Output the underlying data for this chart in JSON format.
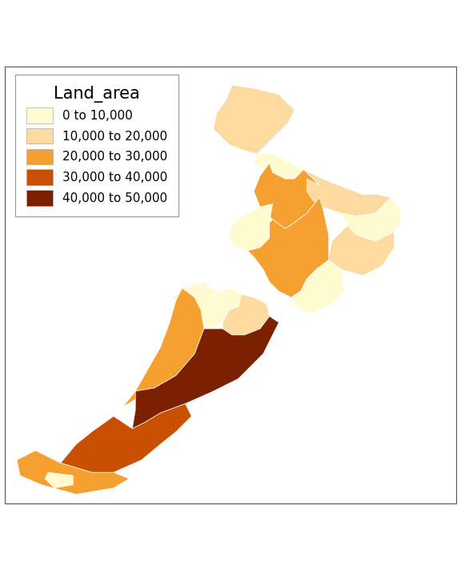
{
  "title": "Land_area",
  "legend_labels": [
    "0 to 10,000",
    "10,000 to 20,000",
    "20,000 to 30,000",
    "30,000 to 40,000",
    "40,000 to 50,000"
  ],
  "legend_colors": [
    "#FFFBD0",
    "#FDDBA0",
    "#F5A030",
    "#C85000",
    "#7B2000"
  ],
  "background_color": "#FFFFFF",
  "border_color": "#555555",
  "bins": [
    0,
    10000,
    20000,
    30000,
    40000,
    50000
  ],
  "region_edgecolor": "#FFFFFF",
  "region_linewidth": 0.5,
  "legend_title_fontsize": 15,
  "legend_label_fontsize": 11,
  "figsize": [
    5.76,
    7.11
  ],
  "dpi": 100,
  "xlim": [
    166.0,
    180.5
  ],
  "ylim": [
    -47.8,
    -33.8
  ],
  "nz_regions": {
    "Northland": 12500,
    "Auckland": 4942,
    "Waikato": 25598,
    "Bay_of_Plenty": 12447,
    "Gisborne": 8385,
    "Hawkes_Bay": 14174,
    "Taranaki": 7254,
    "Manawatu_Whanganui": 22220,
    "Wellington": 8124,
    "Tasman": 9616,
    "Nelson": 444,
    "Marlborough": 10458,
    "West_Coast": 23301,
    "Canterbury": 45346,
    "Otago": 31490,
    "Southland": 28001,
    "Stewart_Island": 1746
  },
  "region_polygons": {
    "Northland": [
      [
        173.3,
        -34.4
      ],
      [
        174.0,
        -34.5
      ],
      [
        174.8,
        -34.7
      ],
      [
        175.3,
        -35.2
      ],
      [
        175.1,
        -35.6
      ],
      [
        174.8,
        -35.9
      ],
      [
        174.4,
        -36.3
      ],
      [
        174.1,
        -36.6
      ],
      [
        173.7,
        -36.5
      ],
      [
        173.2,
        -36.3
      ],
      [
        172.7,
        -35.8
      ],
      [
        172.8,
        -35.3
      ],
      [
        173.1,
        -34.9
      ],
      [
        173.3,
        -34.4
      ]
    ],
    "Auckland": [
      [
        174.1,
        -36.6
      ],
      [
        174.5,
        -36.6
      ],
      [
        175.0,
        -36.8
      ],
      [
        175.6,
        -37.1
      ],
      [
        175.3,
        -37.4
      ],
      [
        175.0,
        -37.4
      ],
      [
        174.6,
        -37.2
      ],
      [
        174.2,
        -37.0
      ],
      [
        174.0,
        -36.9
      ],
      [
        174.1,
        -36.6
      ]
    ],
    "Waikato": [
      [
        175.0,
        -37.4
      ],
      [
        175.3,
        -37.4
      ],
      [
        175.6,
        -37.1
      ],
      [
        176.1,
        -37.6
      ],
      [
        176.1,
        -38.0
      ],
      [
        175.7,
        -38.5
      ],
      [
        175.3,
        -38.8
      ],
      [
        175.0,
        -39.0
      ],
      [
        174.6,
        -38.7
      ],
      [
        174.2,
        -38.3
      ],
      [
        174.0,
        -37.8
      ],
      [
        174.2,
        -37.3
      ],
      [
        174.5,
        -36.9
      ],
      [
        174.6,
        -37.2
      ],
      [
        175.0,
        -37.4
      ]
    ],
    "Bay_of_Plenty": [
      [
        175.6,
        -37.1
      ],
      [
        176.2,
        -37.4
      ],
      [
        176.7,
        -37.6
      ],
      [
        177.5,
        -37.9
      ],
      [
        178.0,
        -37.9
      ],
      [
        178.4,
        -38.0
      ],
      [
        177.9,
        -38.5
      ],
      [
        177.3,
        -38.6
      ],
      [
        176.8,
        -38.5
      ],
      [
        176.2,
        -38.3
      ],
      [
        175.9,
        -38.1
      ],
      [
        175.7,
        -37.8
      ],
      [
        175.7,
        -37.4
      ],
      [
        176.1,
        -37.6
      ],
      [
        175.6,
        -37.1
      ]
    ],
    "Gisborne": [
      [
        178.0,
        -37.9
      ],
      [
        178.4,
        -38.0
      ],
      [
        178.7,
        -38.4
      ],
      [
        178.7,
        -38.8
      ],
      [
        178.5,
        -39.1
      ],
      [
        177.9,
        -39.4
      ],
      [
        177.3,
        -39.2
      ],
      [
        177.0,
        -38.9
      ],
      [
        176.8,
        -38.5
      ],
      [
        177.3,
        -38.6
      ],
      [
        177.9,
        -38.5
      ],
      [
        178.4,
        -38.0
      ],
      [
        178.0,
        -37.9
      ]
    ],
    "Hawkes_Bay": [
      [
        177.9,
        -39.4
      ],
      [
        178.5,
        -39.1
      ],
      [
        178.5,
        -39.6
      ],
      [
        178.1,
        -40.2
      ],
      [
        177.5,
        -40.5
      ],
      [
        176.8,
        -40.3
      ],
      [
        176.4,
        -40.0
      ],
      [
        176.5,
        -39.4
      ],
      [
        177.0,
        -38.9
      ],
      [
        177.3,
        -39.2
      ],
      [
        177.9,
        -39.4
      ]
    ],
    "Taranaki": [
      [
        174.2,
        -38.3
      ],
      [
        174.6,
        -38.2
      ],
      [
        174.5,
        -38.8
      ],
      [
        174.5,
        -39.3
      ],
      [
        174.2,
        -39.6
      ],
      [
        173.8,
        -39.7
      ],
      [
        173.4,
        -39.6
      ],
      [
        173.2,
        -39.3
      ],
      [
        173.3,
        -38.9
      ],
      [
        173.6,
        -38.6
      ],
      [
        174.0,
        -38.4
      ],
      [
        174.2,
        -38.3
      ]
    ],
    "Manawatu_Whanganui": [
      [
        175.0,
        -39.0
      ],
      [
        175.3,
        -38.8
      ],
      [
        175.7,
        -38.5
      ],
      [
        176.1,
        -38.0
      ],
      [
        176.2,
        -38.3
      ],
      [
        176.4,
        -39.2
      ],
      [
        176.4,
        -40.0
      ],
      [
        176.0,
        -40.3
      ],
      [
        175.7,
        -40.6
      ],
      [
        175.5,
        -41.0
      ],
      [
        175.2,
        -41.2
      ],
      [
        174.8,
        -41.0
      ],
      [
        174.5,
        -40.7
      ],
      [
        174.3,
        -40.3
      ],
      [
        174.0,
        -39.9
      ],
      [
        173.8,
        -39.7
      ],
      [
        174.2,
        -39.6
      ],
      [
        174.5,
        -39.3
      ],
      [
        174.5,
        -38.8
      ],
      [
        174.6,
        -38.7
      ],
      [
        175.0,
        -39.0
      ]
    ],
    "Wellington": [
      [
        175.5,
        -41.0
      ],
      [
        175.7,
        -40.6
      ],
      [
        176.0,
        -40.3
      ],
      [
        176.4,
        -40.0
      ],
      [
        176.8,
        -40.3
      ],
      [
        176.9,
        -41.0
      ],
      [
        176.5,
        -41.4
      ],
      [
        175.9,
        -41.7
      ],
      [
        175.5,
        -41.6
      ],
      [
        175.3,
        -41.4
      ],
      [
        175.2,
        -41.2
      ],
      [
        175.5,
        -41.0
      ]
    ],
    "Nelson": [
      [
        172.8,
        -41.0
      ],
      [
        173.3,
        -40.9
      ],
      [
        173.6,
        -41.1
      ],
      [
        173.5,
        -41.5
      ],
      [
        173.2,
        -41.6
      ],
      [
        172.9,
        -41.4
      ],
      [
        172.7,
        -41.2
      ],
      [
        172.8,
        -41.0
      ]
    ],
    "Tasman": [
      [
        171.7,
        -40.9
      ],
      [
        172.4,
        -40.7
      ],
      [
        172.8,
        -41.0
      ],
      [
        172.7,
        -41.2
      ],
      [
        172.9,
        -41.4
      ],
      [
        173.2,
        -41.6
      ],
      [
        173.0,
        -42.0
      ],
      [
        172.6,
        -42.2
      ],
      [
        172.1,
        -42.0
      ],
      [
        171.7,
        -41.6
      ],
      [
        171.4,
        -41.2
      ],
      [
        171.7,
        -40.9
      ]
    ],
    "Marlborough": [
      [
        173.6,
        -41.1
      ],
      [
        174.0,
        -41.2
      ],
      [
        174.4,
        -41.4
      ],
      [
        174.5,
        -41.8
      ],
      [
        174.2,
        -42.2
      ],
      [
        173.7,
        -42.4
      ],
      [
        173.3,
        -42.4
      ],
      [
        173.0,
        -42.2
      ],
      [
        173.0,
        -42.0
      ],
      [
        173.2,
        -41.6
      ],
      [
        173.5,
        -41.5
      ],
      [
        173.6,
        -41.1
      ]
    ],
    "West_Coast": [
      [
        171.7,
        -40.9
      ],
      [
        172.1,
        -41.2
      ],
      [
        172.3,
        -41.6
      ],
      [
        172.4,
        -42.2
      ],
      [
        172.1,
        -43.0
      ],
      [
        171.5,
        -43.7
      ],
      [
        170.8,
        -44.1
      ],
      [
        169.8,
        -44.7
      ],
      [
        170.2,
        -44.2
      ],
      [
        170.6,
        -43.5
      ],
      [
        171.0,
        -42.8
      ],
      [
        171.3,
        -42.0
      ],
      [
        171.5,
        -41.3
      ],
      [
        171.7,
        -40.9
      ]
    ],
    "Canterbury": [
      [
        173.7,
        -42.4
      ],
      [
        174.2,
        -42.2
      ],
      [
        174.5,
        -41.8
      ],
      [
        174.8,
        -42.0
      ],
      [
        174.3,
        -43.0
      ],
      [
        173.5,
        -43.8
      ],
      [
        172.7,
        -44.2
      ],
      [
        171.8,
        -44.6
      ],
      [
        171.0,
        -44.9
      ],
      [
        170.5,
        -45.2
      ],
      [
        170.1,
        -45.4
      ],
      [
        170.2,
        -44.8
      ],
      [
        170.2,
        -44.2
      ],
      [
        170.8,
        -44.1
      ],
      [
        171.5,
        -43.7
      ],
      [
        172.1,
        -43.0
      ],
      [
        172.4,
        -42.2
      ],
      [
        172.6,
        -42.2
      ],
      [
        173.0,
        -42.2
      ],
      [
        173.3,
        -42.4
      ],
      [
        173.7,
        -42.4
      ]
    ],
    "Otago": [
      [
        170.5,
        -45.2
      ],
      [
        171.0,
        -44.9
      ],
      [
        171.8,
        -44.6
      ],
      [
        172.0,
        -45.0
      ],
      [
        171.5,
        -45.5
      ],
      [
        171.0,
        -45.9
      ],
      [
        170.4,
        -46.4
      ],
      [
        169.5,
        -46.8
      ],
      [
        168.8,
        -46.8
      ],
      [
        167.8,
        -46.5
      ],
      [
        168.3,
        -45.9
      ],
      [
        168.8,
        -45.5
      ],
      [
        169.5,
        -45.0
      ],
      [
        170.1,
        -45.4
      ],
      [
        170.5,
        -45.2
      ]
    ],
    "Southland": [
      [
        167.8,
        -46.5
      ],
      [
        168.8,
        -46.8
      ],
      [
        169.5,
        -46.8
      ],
      [
        170.0,
        -47.0
      ],
      [
        169.5,
        -47.3
      ],
      [
        168.3,
        -47.5
      ],
      [
        167.2,
        -47.2
      ],
      [
        166.5,
        -46.9
      ],
      [
        166.4,
        -46.4
      ],
      [
        167.0,
        -46.1
      ],
      [
        167.8,
        -46.5
      ]
    ],
    "Stewart_Island": [
      [
        167.4,
        -46.8
      ],
      [
        168.2,
        -46.9
      ],
      [
        168.2,
        -47.2
      ],
      [
        167.6,
        -47.3
      ],
      [
        167.3,
        -47.0
      ],
      [
        167.4,
        -46.8
      ]
    ]
  }
}
